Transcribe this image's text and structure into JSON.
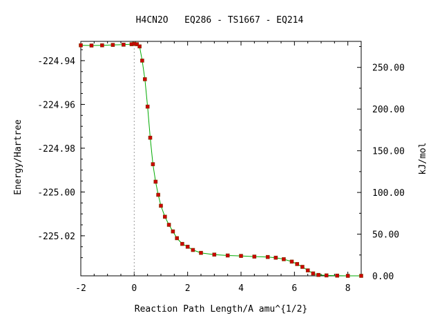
{
  "chart_data": {
    "type": "line",
    "title": "H4CN2O   EQ286 - TS1667 - EQ214",
    "xlabel": "Reaction Path Length/A amu^{1/2}",
    "ylabel": "Energy/Hartree",
    "y2label": "kJ/mol",
    "xlim": [
      -2,
      8.5
    ],
    "ylim": [
      -225.0383,
      -224.9312
    ],
    "y2lim": [
      0,
      281.2
    ],
    "x_ticks": [
      -2,
      0,
      2,
      4,
      6,
      8
    ],
    "x_tick_labels": [
      "-2",
      "0",
      "2",
      "4",
      "6",
      "8"
    ],
    "y_ticks": [
      -224.94,
      -224.96,
      -224.98,
      -225.0,
      -225.02
    ],
    "y_tick_labels": [
      "-224.94",
      "-224.96",
      "-224.98",
      "-225.00",
      "-225.02"
    ],
    "y2_ticks": [
      0,
      50,
      100,
      150,
      200,
      250
    ],
    "y2_tick_labels": [
      "0.00",
      "50.00",
      "100.00",
      "150.00",
      "200.00",
      "250.00"
    ],
    "ts_marker_x": 0,
    "grid": false,
    "colors": {
      "line": "#00aa00",
      "marker": "#cc0000",
      "marker_edge": "#7a3a00",
      "ts_line": "#888888"
    },
    "series": [
      {
        "x": [
          -2.0,
          -1.6,
          -1.2,
          -0.8,
          -0.4,
          -0.1,
          0.0,
          0.1,
          0.2,
          0.3,
          0.4,
          0.5,
          0.6,
          0.7,
          0.8,
          0.9,
          1.0,
          1.15,
          1.3,
          1.45,
          1.6,
          1.8,
          2.0,
          2.2,
          2.5,
          3.0,
          3.5,
          4.0,
          4.5,
          5.0,
          5.3,
          5.6,
          5.9,
          6.1,
          6.3,
          6.5,
          6.7,
          6.9,
          7.2,
          7.6,
          8.0,
          8.5
        ],
        "y": [
          -224.933,
          -224.9331,
          -224.933,
          -224.9328,
          -224.9327,
          -224.9325,
          -224.9323,
          -224.9325,
          -224.9335,
          -224.94,
          -224.9485,
          -224.961,
          -224.9752,
          -224.9873,
          -224.9953,
          -225.0013,
          -225.0063,
          -225.0113,
          -225.015,
          -225.018,
          -225.0211,
          -225.0237,
          -225.025,
          -225.0265,
          -225.0278,
          -225.0286,
          -225.029,
          -225.0292,
          -225.0295,
          -225.0297,
          -225.03,
          -225.0307,
          -225.0318,
          -225.0329,
          -225.0342,
          -225.0358,
          -225.0372,
          -225.0379,
          -225.0381,
          -225.0382,
          -225.0383,
          -225.0383
        ]
      }
    ]
  }
}
